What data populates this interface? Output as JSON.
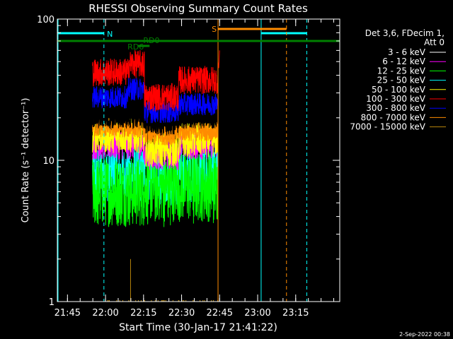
{
  "chart_data": {
    "type": "line",
    "title": "RHESSI Observing Summary Count Rates",
    "xlabel": "Start Time (30-Jan-17 21:41:22)",
    "ylabel": "Count Rate (s⁻¹ detector⁻¹)",
    "yscale": "log",
    "ylim": [
      1,
      100
    ],
    "xlim_minutes": [
      -0.37,
      111
    ],
    "x_ticks": [
      "21:45",
      "22:00",
      "22:15",
      "22:30",
      "22:45",
      "23:00",
      "23:15"
    ],
    "y_ticks": [
      "1",
      "10",
      "100"
    ],
    "legend_header": [
      "Det 3,6, FDecim 1,",
      "Att 0"
    ],
    "legend_placement": "right",
    "timestamp": "2-Sep-2022 00:38",
    "series": [
      {
        "name": "3 - 6 keV",
        "color": "#000000",
        "values": [
          20,
          20,
          18,
          20
        ]
      },
      {
        "name": "6 - 12 keV",
        "color": "#ff00ff",
        "values": [
          13,
          13,
          11,
          13
        ]
      },
      {
        "name": "12 - 25 keV",
        "color": "#00ff00",
        "values": [
          6,
          6,
          6.5,
          6.5
        ]
      },
      {
        "name": "25 - 50 keV",
        "color": "#00ffff",
        "values": [
          8,
          8,
          7.5,
          8
        ]
      },
      {
        "name": "50 - 100 keV",
        "color": "#ffff00",
        "values": [
          15,
          15,
          12,
          14
        ]
      },
      {
        "name": "100 - 300 keV",
        "color": "#ff0000",
        "values": [
          42,
          48,
          28,
          37
        ]
      },
      {
        "name": "300 - 800 keV",
        "color": "#0000ff",
        "values": [
          28,
          32,
          22,
          25
        ]
      },
      {
        "name": "800 - 7000 keV",
        "color": "#ff8c00",
        "values": [
          17,
          17,
          15,
          16
        ]
      },
      {
        "name": "7000 - 15000 keV",
        "color": "#b8860b",
        "values": [
          1,
          1,
          1,
          1
        ]
      }
    ],
    "annotations": [
      {
        "label": "N",
        "color": "#00ffff"
      },
      {
        "label": "S",
        "color": "#ff8c00"
      },
      {
        "label": "RD6",
        "color": "#008000"
      },
      {
        "label": "RD0",
        "color": "#008000"
      }
    ]
  }
}
